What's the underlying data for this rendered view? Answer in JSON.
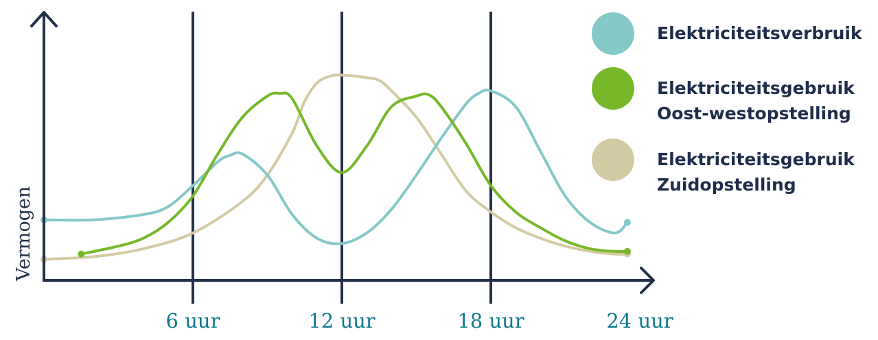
{
  "chart_data": {
    "type": "line",
    "title": "",
    "xlabel": "",
    "ylabel": "Vermogen",
    "xlim": [
      0,
      24
    ],
    "ylim": [
      0,
      100
    ],
    "x_ticks": [
      6,
      12,
      18,
      24
    ],
    "tick_labels": [
      "6 uur",
      "12 uur",
      "18 uur",
      "24 uur"
    ],
    "grid": "vertical lines at tick positions",
    "legend_position": "top-right",
    "series": [
      {
        "name": "Elektriciteitsverbruik",
        "color": "#84c9c7",
        "x": [
          0,
          2,
          4,
          5,
          6,
          7,
          7.5,
          8,
          9,
          10,
          11,
          12,
          13,
          14,
          15,
          16,
          17,
          17.5,
          18,
          19,
          20,
          21,
          22,
          23,
          23.5
        ],
        "y": [
          23,
          23,
          25,
          28,
          36,
          45,
          47.5,
          48,
          40,
          25,
          16,
          14,
          18,
          27,
          40,
          54,
          67,
          71,
          72,
          66,
          49,
          32,
          22,
          18,
          22
        ]
      },
      {
        "name": "Elektriciteitsgebruik\nOost-westopstelling",
        "color": "#76b82a",
        "x": [
          1.5,
          3,
          4,
          5,
          6,
          7,
          8,
          9,
          9.5,
          10,
          11,
          12,
          13,
          14,
          15,
          15.5,
          16,
          17,
          18,
          19,
          20,
          21,
          22,
          23,
          23.5
        ],
        "y": [
          10,
          13,
          16,
          22,
          32,
          48,
          62,
          70,
          71,
          69,
          51,
          41,
          51,
          66,
          70,
          70.5,
          66,
          52,
          36,
          26,
          20,
          15,
          12,
          11,
          11
        ]
      },
      {
        "name": "Elektriciteitsgebruik\nZuidopstelling",
        "color": "#d3cba4",
        "x": [
          0,
          2,
          4,
          6,
          8,
          9,
          10,
          10.5,
          11,
          11.5,
          12,
          13,
          13.5,
          14,
          15,
          16,
          17,
          18,
          19,
          20,
          21,
          22,
          23,
          23.5
        ],
        "y": [
          8,
          9,
          12,
          18,
          30,
          40,
          56,
          68,
          75,
          77.5,
          78,
          77,
          76,
          72,
          62,
          48,
          34,
          26,
          20,
          16,
          13,
          11,
          10,
          10
        ]
      }
    ]
  }
}
